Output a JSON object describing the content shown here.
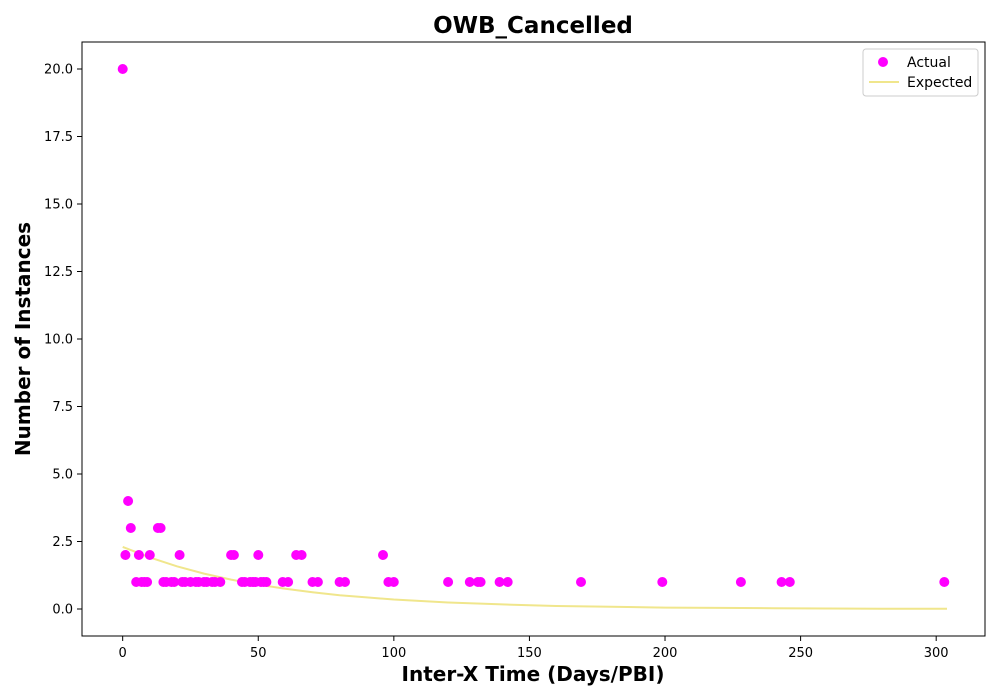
{
  "chart_data": {
    "type": "scatter",
    "title": "OWB_Cancelled",
    "xlabel": "Inter-X Time (Days/PBI)",
    "ylabel": "Number of Instances",
    "xlim": [
      -15,
      318
    ],
    "ylim": [
      -1.0,
      21.0
    ],
    "xticks": [
      0,
      50,
      100,
      150,
      200,
      250,
      300
    ],
    "yticks": [
      0.0,
      2.5,
      5.0,
      7.5,
      10.0,
      12.5,
      15.0,
      17.5,
      20.0
    ],
    "xtick_labels": [
      "0",
      "50",
      "100",
      "150",
      "200",
      "250",
      "300"
    ],
    "ytick_labels": [
      "0.0",
      "2.5",
      "5.0",
      "7.5",
      "10.0",
      "12.5",
      "15.0",
      "17.5",
      "20.0"
    ],
    "grid": false,
    "legend_position": "top-right",
    "series": [
      {
        "name": "Actual",
        "kind": "scatter",
        "color": "#ff00ff",
        "points": [
          [
            0,
            20
          ],
          [
            1,
            2
          ],
          [
            2,
            4
          ],
          [
            3,
            3
          ],
          [
            5,
            1
          ],
          [
            6,
            2
          ],
          [
            7,
            1
          ],
          [
            8,
            1
          ],
          [
            9,
            1
          ],
          [
            10,
            2
          ],
          [
            13,
            3
          ],
          [
            14,
            3
          ],
          [
            15,
            1
          ],
          [
            16,
            1
          ],
          [
            18,
            1
          ],
          [
            19,
            1
          ],
          [
            21,
            2
          ],
          [
            22,
            1
          ],
          [
            23,
            1
          ],
          [
            25,
            1
          ],
          [
            27,
            1
          ],
          [
            28,
            1
          ],
          [
            30,
            1
          ],
          [
            31,
            1
          ],
          [
            33,
            1
          ],
          [
            34,
            1
          ],
          [
            36,
            1
          ],
          [
            40,
            2
          ],
          [
            41,
            2
          ],
          [
            44,
            1
          ],
          [
            45,
            1
          ],
          [
            47,
            1
          ],
          [
            48,
            1
          ],
          [
            49,
            1
          ],
          [
            50,
            2
          ],
          [
            51,
            1
          ],
          [
            52,
            1
          ],
          [
            53,
            1
          ],
          [
            59,
            1
          ],
          [
            61,
            1
          ],
          [
            64,
            2
          ],
          [
            66,
            2
          ],
          [
            70,
            1
          ],
          [
            72,
            1
          ],
          [
            80,
            1
          ],
          [
            82,
            1
          ],
          [
            96,
            2
          ],
          [
            98,
            1
          ],
          [
            100,
            1
          ],
          [
            120,
            1
          ],
          [
            128,
            1
          ],
          [
            131,
            1
          ],
          [
            132,
            1
          ],
          [
            139,
            1
          ],
          [
            142,
            1
          ],
          [
            169,
            1
          ],
          [
            199,
            1
          ],
          [
            228,
            1
          ],
          [
            243,
            1
          ],
          [
            246,
            1
          ],
          [
            303,
            1
          ]
        ]
      },
      {
        "name": "Expected",
        "kind": "line",
        "color": "#f0e68c",
        "points": [
          [
            0,
            2.3
          ],
          [
            10,
            1.91
          ],
          [
            20,
            1.58
          ],
          [
            30,
            1.31
          ],
          [
            40,
            1.09
          ],
          [
            50,
            0.9
          ],
          [
            60,
            0.75
          ],
          [
            70,
            0.62
          ],
          [
            80,
            0.51
          ],
          [
            90,
            0.43
          ],
          [
            100,
            0.35
          ],
          [
            120,
            0.24
          ],
          [
            140,
            0.17
          ],
          [
            160,
            0.11
          ],
          [
            180,
            0.08
          ],
          [
            200,
            0.05
          ],
          [
            220,
            0.04
          ],
          [
            240,
            0.03
          ],
          [
            260,
            0.02
          ],
          [
            280,
            0.01
          ],
          [
            304,
            0.01
          ]
        ]
      }
    ]
  }
}
